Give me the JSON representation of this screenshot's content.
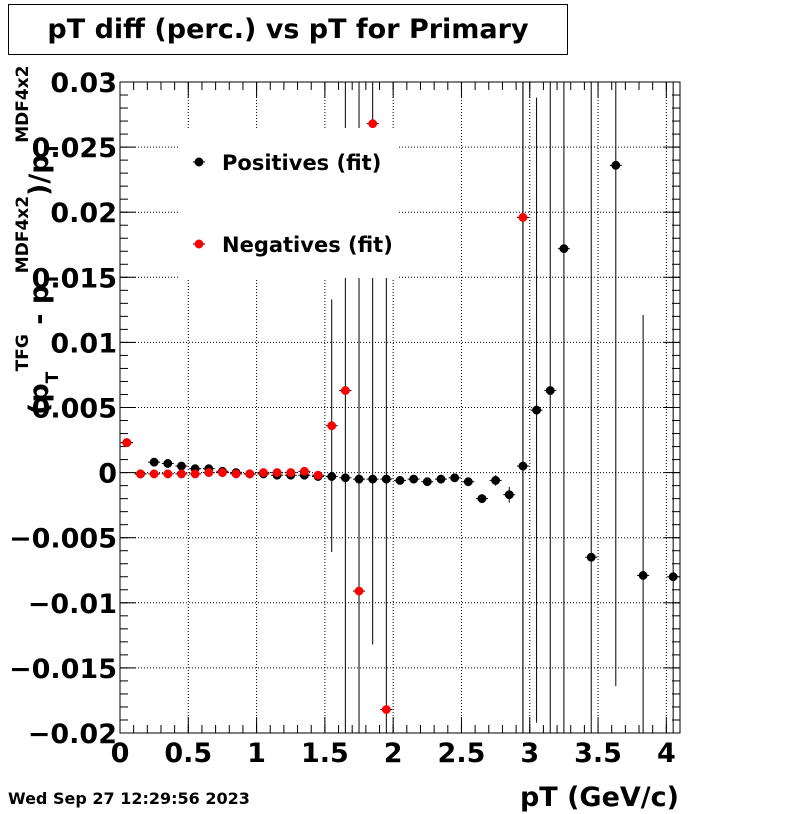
{
  "chart_data": {
    "type": "scatter",
    "title": "pT diff (perc.) vs pT for Primary",
    "xlabel": "pT (GeV/c)",
    "ylabel": "(pT^TFG - pT^MDF4x2)/pT^MDF4x2",
    "ylabel_parts": {
      "open": "(p",
      "sub1": "T",
      "sup1": "TFG",
      "mid": " - p",
      "sub2": "T",
      "sup2": "MDF4x2",
      "close": ")/p",
      "sub3": "T",
      "sup3": "MDF4x2"
    },
    "xlim": [
      0,
      4.1
    ],
    "ylim": [
      -0.02,
      0.03
    ],
    "x_ticks": [
      0,
      0.5,
      1,
      1.5,
      2,
      2.5,
      3,
      3.5,
      4
    ],
    "x_tick_labels": [
      "0",
      "0.5",
      "1",
      "1.5",
      "2",
      "2.5",
      "3",
      "3.5",
      "4"
    ],
    "y_ticks": [
      -0.02,
      -0.015,
      -0.01,
      -0.005,
      0,
      0.005,
      0.01,
      0.015,
      0.02,
      0.025,
      0.03
    ],
    "y_tick_labels": [
      "−0.02",
      "−0.015",
      "−0.01",
      "−0.005",
      "0",
      "0.005",
      "0.01",
      "0.015",
      "0.02",
      "0.025",
      "0.03"
    ],
    "grid": true,
    "legend_position": "top-left",
    "series": [
      {
        "name": "Positives (fit)",
        "color": "#000000",
        "points": [
          {
            "x": 0.05,
            "y": 0.0023,
            "err": 0.0002
          },
          {
            "x": 0.15,
            "y": -0.0001,
            "err": 0.0001
          },
          {
            "x": 0.25,
            "y": 0.0008,
            "err": 0.0001
          },
          {
            "x": 0.35,
            "y": 0.0007,
            "err": 0.0001
          },
          {
            "x": 0.45,
            "y": 0.0005,
            "err": 0.0001
          },
          {
            "x": 0.55,
            "y": 0.0003,
            "err": 0.0001
          },
          {
            "x": 0.65,
            "y": 0.0003,
            "err": 0.0001
          },
          {
            "x": 0.75,
            "y": 0.0001,
            "err": 0.0001
          },
          {
            "x": 0.85,
            "y": 0.0,
            "err": 0.0001
          },
          {
            "x": 0.95,
            "y": -0.0001,
            "err": 0.0001
          },
          {
            "x": 1.05,
            "y": -0.0001,
            "err": 0.0001
          },
          {
            "x": 1.15,
            "y": -0.0002,
            "err": 0.0001
          },
          {
            "x": 1.25,
            "y": -0.0002,
            "err": 0.0001
          },
          {
            "x": 1.35,
            "y": -0.0002,
            "err": 0.0001
          },
          {
            "x": 1.45,
            "y": -0.0003,
            "err": 0.0001
          },
          {
            "x": 1.55,
            "y": -0.0003,
            "err": 0.0001
          },
          {
            "x": 1.65,
            "y": -0.0004,
            "err": 0.0001
          },
          {
            "x": 1.75,
            "y": -0.0005,
            "err": 0.0001
          },
          {
            "x": 1.85,
            "y": -0.0005,
            "err": 0.0001
          },
          {
            "x": 1.95,
            "y": -0.0005,
            "err": 0.0001
          },
          {
            "x": 2.05,
            "y": -0.0006,
            "err": 0.0001
          },
          {
            "x": 2.15,
            "y": -0.0005,
            "err": 0.0001
          },
          {
            "x": 2.25,
            "y": -0.0007,
            "err": 0.0001
          },
          {
            "x": 2.35,
            "y": -0.0005,
            "err": 0.0001
          },
          {
            "x": 2.45,
            "y": -0.0004,
            "err": 0.0002
          },
          {
            "x": 2.55,
            "y": -0.0007,
            "err": 0.0002
          },
          {
            "x": 2.65,
            "y": -0.002,
            "err": 0.0003
          },
          {
            "x": 2.75,
            "y": -0.0006,
            "err": 0.0004
          },
          {
            "x": 2.85,
            "y": -0.0017,
            "err": 0.0006
          },
          {
            "x": 2.95,
            "y": 0.0005,
            "err": 0.03
          },
          {
            "x": 3.05,
            "y": 0.0048,
            "err": 0.024
          },
          {
            "x": 3.15,
            "y": 0.0063,
            "err": 0.03
          },
          {
            "x": 3.25,
            "y": 0.0172,
            "err": 0.04
          },
          {
            "x": 3.45,
            "y": -0.0065,
            "err": 0.04
          },
          {
            "x": 3.63,
            "y": 0.0236,
            "err": 0.04
          },
          {
            "x": 3.83,
            "y": -0.0079,
            "err": 0.02
          },
          {
            "x": 4.05,
            "y": -0.008,
            "err": 0.04
          }
        ]
      },
      {
        "name": "Negatives (fit)",
        "color": "#ff0000",
        "points": [
          {
            "x": 0.05,
            "y": 0.0023,
            "err": 0.0002
          },
          {
            "x": 0.15,
            "y": -0.0001,
            "err": 0.0001
          },
          {
            "x": 0.25,
            "y": -0.0001,
            "err": 0.0001
          },
          {
            "x": 0.35,
            "y": -0.0001,
            "err": 0.0001
          },
          {
            "x": 0.45,
            "y": -0.0001,
            "err": 0.0001
          },
          {
            "x": 0.55,
            "y": -0.0001,
            "err": 0.0001
          },
          {
            "x": 0.65,
            "y": 0.0,
            "err": 0.0001
          },
          {
            "x": 0.75,
            "y": 0.0,
            "err": 0.0001
          },
          {
            "x": 0.85,
            "y": -0.0001,
            "err": 0.0001
          },
          {
            "x": 0.95,
            "y": -0.0001,
            "err": 0.0001
          },
          {
            "x": 1.05,
            "y": 0.0,
            "err": 0.0001
          },
          {
            "x": 1.15,
            "y": 0.0,
            "err": 0.0001
          },
          {
            "x": 1.25,
            "y": 0.0,
            "err": 0.0001
          },
          {
            "x": 1.35,
            "y": 0.0001,
            "err": 0.0001
          },
          {
            "x": 1.45,
            "y": -0.0002,
            "err": 0.0001
          },
          {
            "x": 1.55,
            "y": 0.0036,
            "err": 0.0097
          },
          {
            "x": 1.65,
            "y": 0.0063,
            "err": 0.04
          },
          {
            "x": 1.75,
            "y": -0.0091,
            "err": 0.04
          },
          {
            "x": 1.85,
            "y": 0.0268,
            "err": 0.04
          },
          {
            "x": 1.95,
            "y": -0.0182,
            "err": 0.04
          },
          {
            "x": 2.95,
            "y": 0.0196,
            "err": 0.04
          }
        ]
      }
    ]
  },
  "footer": {
    "timestamp": "Wed Sep 27 12:29:56 2023"
  }
}
